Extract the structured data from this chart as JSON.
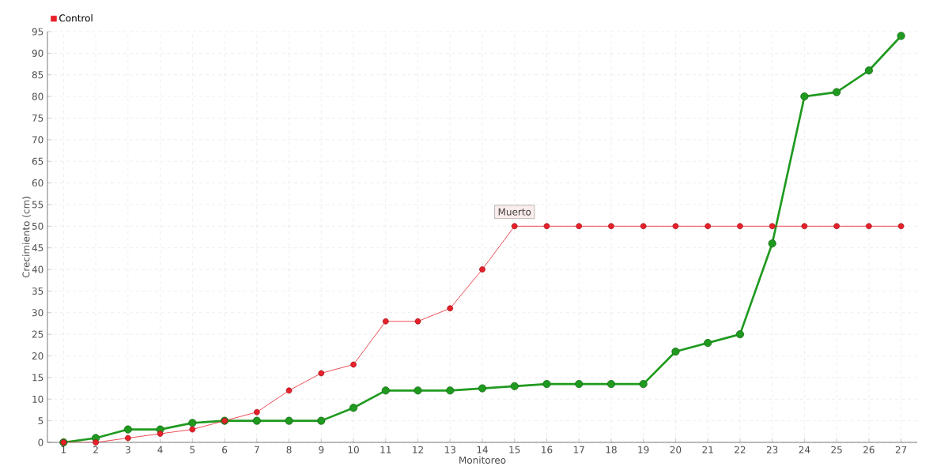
{
  "chart_data": {
    "type": "line",
    "xlabel": "Monitoreo",
    "ylabel": "Crecimiento (cm)",
    "categories": [
      "1",
      "2",
      "3",
      "4",
      "5",
      "6",
      "7",
      "8",
      "9",
      "10",
      "11",
      "12",
      "13",
      "14",
      "15",
      "16",
      "17",
      "18",
      "19",
      "20",
      "21",
      "22",
      "23",
      "24",
      "25",
      "26",
      "27"
    ],
    "series": [
      {
        "color": "#1f9a1f",
        "values": [
          0,
          1,
          3,
          3,
          4.5,
          5,
          5,
          5,
          5,
          8,
          12,
          12,
          12,
          12.5,
          13,
          13.5,
          13.5,
          13.5,
          13.5,
          21,
          23,
          25,
          46,
          80,
          81,
          86,
          94
        ]
      },
      {
        "name": "Control",
        "color": "#e8202a",
        "values": [
          0,
          0,
          1,
          2,
          3,
          5,
          7,
          12,
          16,
          18,
          28,
          28,
          31,
          40,
          50,
          50,
          50,
          50,
          50,
          50,
          50,
          50,
          50,
          50,
          50,
          50,
          50
        ]
      }
    ],
    "ylim": [
      0,
      95
    ],
    "yticks": [
      0,
      5,
      10,
      15,
      20,
      25,
      30,
      35,
      40,
      45,
      50,
      55,
      60,
      65,
      70,
      75,
      80,
      85,
      90,
      95
    ],
    "grid": true,
    "legend": "top left",
    "marker": "circle",
    "line_style": "solid",
    "annotations": [
      {
        "text": "Muerto",
        "x": "15",
        "y": 50
      }
    ]
  }
}
